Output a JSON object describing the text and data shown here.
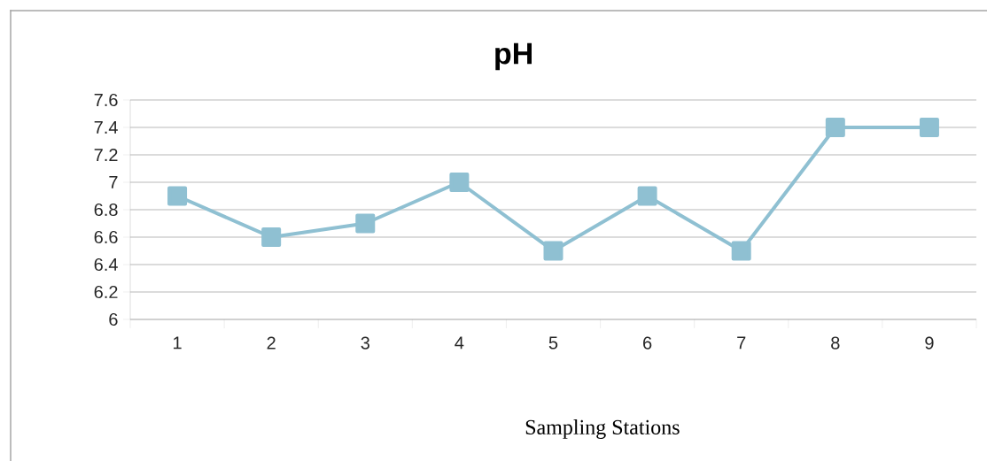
{
  "chart_data": {
    "type": "line",
    "title": "pH",
    "xlabel": "Sampling Stations",
    "categories": [
      "1",
      "2",
      "3",
      "4",
      "5",
      "6",
      "7",
      "8",
      "9"
    ],
    "series": [
      {
        "color": "#8fc0d2",
        "values": [
          6.9,
          6.6,
          6.7,
          7.0,
          6.5,
          6.9,
          6.5,
          7.4,
          7.4
        ]
      }
    ],
    "ylim": [
      6,
      7.6
    ],
    "yticks": [
      6,
      6.2,
      6.4,
      6.6,
      6.8,
      7,
      7.2,
      7.4,
      7.6
    ],
    "grid": "y",
    "marker": "square",
    "line_style": "solid",
    "legend": false
  }
}
